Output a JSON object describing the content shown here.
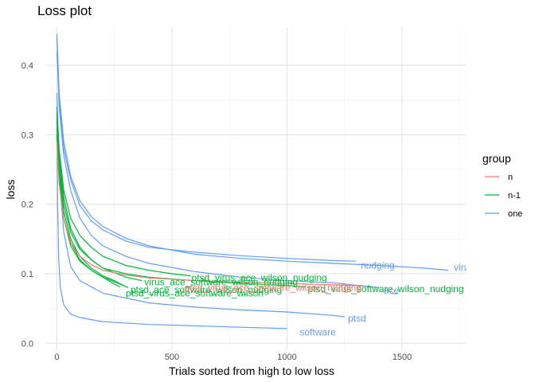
{
  "chart_data": {
    "type": "line",
    "title": "Loss plot",
    "xlabel": "Trials sorted from high to low loss",
    "ylabel": "loss",
    "xlim": [
      -50,
      1780
    ],
    "ylim": [
      -0.01,
      0.455
    ],
    "x_ticks": [
      0,
      500,
      1000,
      1500
    ],
    "x_tick_labels": [
      "0",
      "500",
      "1000",
      "1500"
    ],
    "y_ticks": [
      0.0,
      0.1,
      0.2,
      0.3,
      0.4
    ],
    "y_tick_labels": [
      "0.0",
      "0.1",
      "0.2",
      "0.3",
      "0.4"
    ],
    "grid": true,
    "legend": {
      "title": "group",
      "position": "right",
      "entries": [
        {
          "label": "n",
          "color": "#F8766D"
        },
        {
          "label": "n-1",
          "color": "#00BA38"
        },
        {
          "label": "one",
          "color": "#619CFF"
        }
      ]
    },
    "series": [
      {
        "group": "one",
        "color": "#619CFF",
        "end_label": "virus",
        "label_at": [
          1725,
          0.109
        ],
        "points": [
          [
            0,
            0.445
          ],
          [
            10,
            0.36
          ],
          [
            30,
            0.29
          ],
          [
            60,
            0.24
          ],
          [
            100,
            0.205
          ],
          [
            150,
            0.182
          ],
          [
            200,
            0.168
          ],
          [
            300,
            0.151
          ],
          [
            400,
            0.14
          ],
          [
            600,
            0.128
          ],
          [
            800,
            0.122
          ],
          [
            1000,
            0.118
          ],
          [
            1200,
            0.115
          ],
          [
            1400,
            0.112
          ],
          [
            1600,
            0.108
          ],
          [
            1700,
            0.105
          ]
        ]
      },
      {
        "group": "one",
        "color": "#619CFF",
        "end_label": "nudging",
        "label_at": [
          1320,
          0.112
        ],
        "points": [
          [
            0,
            0.44
          ],
          [
            10,
            0.35
          ],
          [
            30,
            0.28
          ],
          [
            60,
            0.235
          ],
          [
            100,
            0.198
          ],
          [
            150,
            0.176
          ],
          [
            200,
            0.163
          ],
          [
            300,
            0.147
          ],
          [
            400,
            0.138
          ],
          [
            600,
            0.131
          ],
          [
            800,
            0.126
          ],
          [
            1000,
            0.122
          ],
          [
            1200,
            0.119
          ],
          [
            1300,
            0.118
          ]
        ]
      },
      {
        "group": "one",
        "color": "#619CFF",
        "end_label": "ace",
        "label_at": [
          1420,
          0.076
        ],
        "points": [
          [
            0,
            0.42
          ],
          [
            10,
            0.34
          ],
          [
            30,
            0.27
          ],
          [
            60,
            0.22
          ],
          [
            100,
            0.18
          ],
          [
            150,
            0.155
          ],
          [
            200,
            0.14
          ],
          [
            300,
            0.125
          ],
          [
            400,
            0.115
          ],
          [
            600,
            0.103
          ],
          [
            800,
            0.095
          ],
          [
            1000,
            0.09
          ],
          [
            1200,
            0.087
          ],
          [
            1400,
            0.08
          ]
        ]
      },
      {
        "group": "one",
        "color": "#619CFF",
        "end_label": "ptsd",
        "label_at": [
          1265,
          0.036
        ],
        "points": [
          [
            0,
            0.36
          ],
          [
            5,
            0.3
          ],
          [
            15,
            0.22
          ],
          [
            30,
            0.16
          ],
          [
            60,
            0.11
          ],
          [
            100,
            0.09
          ],
          [
            200,
            0.072
          ],
          [
            400,
            0.058
          ],
          [
            600,
            0.052
          ],
          [
            800,
            0.048
          ],
          [
            1000,
            0.045
          ],
          [
            1200,
            0.04
          ],
          [
            1250,
            0.038
          ]
        ]
      },
      {
        "group": "one",
        "color": "#619CFF",
        "end_label": "software",
        "label_at": [
          1055,
          0.016
        ],
        "points": [
          [
            0,
            0.34
          ],
          [
            3,
            0.2
          ],
          [
            8,
            0.12
          ],
          [
            15,
            0.08
          ],
          [
            30,
            0.055
          ],
          [
            60,
            0.042
          ],
          [
            100,
            0.037
          ],
          [
            200,
            0.031
          ],
          [
            400,
            0.027
          ],
          [
            600,
            0.025
          ],
          [
            800,
            0.023
          ],
          [
            1000,
            0.021
          ]
        ]
      },
      {
        "group": "n-1",
        "color": "#00BA38",
        "end_label": "ptsd_virus_ace_wilson_nudging",
        "label_at": [
          585,
          0.094
        ],
        "points": [
          [
            0,
            0.34
          ],
          [
            10,
            0.28
          ],
          [
            30,
            0.22
          ],
          [
            60,
            0.18
          ],
          [
            100,
            0.155
          ],
          [
            150,
            0.138
          ],
          [
            200,
            0.125
          ],
          [
            300,
            0.112
          ],
          [
            400,
            0.105
          ],
          [
            500,
            0.1
          ],
          [
            580,
            0.097
          ]
        ]
      },
      {
        "group": "n-1",
        "color": "#00BA38",
        "end_label": "virus_ace_software_wilson_nudging",
        "label_at": [
          380,
          0.088
        ],
        "points": [
          [
            0,
            0.32
          ],
          [
            10,
            0.26
          ],
          [
            30,
            0.2
          ],
          [
            60,
            0.16
          ],
          [
            100,
            0.135
          ],
          [
            150,
            0.12
          ],
          [
            200,
            0.108
          ],
          [
            300,
            0.095
          ],
          [
            370,
            0.09
          ]
        ]
      },
      {
        "group": "n-1",
        "color": "#00BA38",
        "end_label": "ptsd_ace_software_wilson_nudging",
        "label_at": [
          320,
          0.077
        ],
        "points": [
          [
            0,
            0.3
          ],
          [
            10,
            0.24
          ],
          [
            30,
            0.18
          ],
          [
            60,
            0.14
          ],
          [
            100,
            0.118
          ],
          [
            150,
            0.105
          ],
          [
            200,
            0.095
          ],
          [
            260,
            0.087
          ],
          [
            310,
            0.08
          ]
        ]
      },
      {
        "group": "n-1",
        "color": "#00BA38",
        "end_label": "ptsd_virus_ace_software_wilson",
        "label_at": [
          300,
          0.072
        ],
        "points": [
          [
            0,
            0.31
          ],
          [
            10,
            0.25
          ],
          [
            30,
            0.19
          ],
          [
            60,
            0.15
          ],
          [
            100,
            0.125
          ],
          [
            150,
            0.108
          ],
          [
            200,
            0.097
          ],
          [
            250,
            0.09
          ],
          [
            295,
            0.082
          ]
        ]
      },
      {
        "group": "n-1",
        "color": "#00BA38",
        "end_label": "ptsd_virus_software_wilson_nudging",
        "label_at": [
          1090,
          0.078
        ],
        "points": [
          [
            0,
            0.33
          ],
          [
            10,
            0.27
          ],
          [
            30,
            0.21
          ],
          [
            60,
            0.165
          ],
          [
            100,
            0.138
          ],
          [
            150,
            0.12
          ],
          [
            200,
            0.108
          ],
          [
            300,
            0.1
          ],
          [
            400,
            0.095
          ],
          [
            600,
            0.09
          ],
          [
            800,
            0.086
          ],
          [
            1000,
            0.083
          ],
          [
            1080,
            0.081
          ]
        ]
      },
      {
        "group": "n-1",
        "color": "#00BA38",
        "end_label": "",
        "label_at": null,
        "points": [
          [
            0,
            0.3
          ],
          [
            10,
            0.24
          ],
          [
            30,
            0.18
          ],
          [
            60,
            0.145
          ],
          [
            100,
            0.12
          ],
          [
            150,
            0.105
          ],
          [
            200,
            0.095
          ],
          [
            250,
            0.085
          ],
          [
            275,
            0.081
          ]
        ]
      },
      {
        "group": "n",
        "color": "#F8766D",
        "end_label": "ptsd_virus_ace_software_wilson_nudging",
        "label_at": [
          555,
          0.08
        ],
        "points": [
          [
            0,
            0.29
          ],
          [
            10,
            0.23
          ],
          [
            30,
            0.18
          ],
          [
            60,
            0.145
          ],
          [
            100,
            0.125
          ],
          [
            150,
            0.113
          ],
          [
            200,
            0.105
          ],
          [
            300,
            0.098
          ],
          [
            400,
            0.094
          ],
          [
            600,
            0.09
          ],
          [
            800,
            0.088
          ],
          [
            1000,
            0.086
          ],
          [
            1200,
            0.084
          ],
          [
            1330,
            0.083
          ]
        ]
      }
    ]
  }
}
